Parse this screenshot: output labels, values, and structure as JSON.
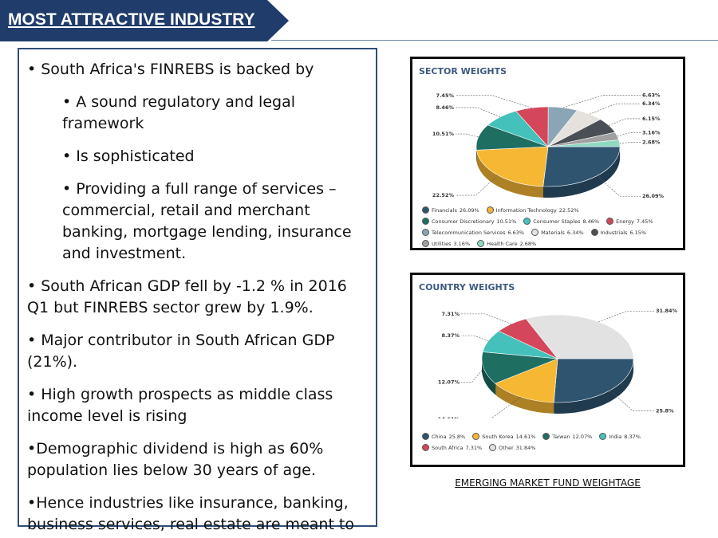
{
  "header": {
    "title": "MOST ATTRACTIVE INDUSTRY"
  },
  "bullets": [
    {
      "level": 1,
      "text": "• South Africa's FINREBS is backed by"
    },
    {
      "level": 2,
      "text": "• A sound regulatory and legal framework"
    },
    {
      "level": 2,
      "text": "• Is sophisticated"
    },
    {
      "level": 2,
      "text": "• Providing a full range of services – commercial, retail and merchant banking, mortgage lending, insurance and investment."
    },
    {
      "level": 1,
      "text": "• South African GDP fell by -1.2 % in 2016 Q1 but FINREBS sector grew by 1.9%."
    },
    {
      "level": 1,
      "text": "• Major contributor in South African GDP (21%)."
    },
    {
      "level": 1,
      "text": "• High growth prospects as middle class income level is rising"
    },
    {
      "level": 1,
      "text": "•Demographic dividend is high as 60% population lies below 30 years of age."
    },
    {
      "level": 1,
      "text": "•Hence industries like insurance, banking, business services, real estate are meant to prosper."
    }
  ],
  "chart_data": [
    {
      "type": "pie",
      "title": "SECTOR WEIGHTS",
      "categories": [
        "Financials",
        "Information Technology",
        "Consumer Discretionary",
        "Consumer Staples",
        "Energy",
        "Telecommunication Services",
        "Materials",
        "Industrials",
        "Utilities",
        "Health Care"
      ],
      "values": [
        26.09,
        22.52,
        10.51,
        8.46,
        7.45,
        6.63,
        6.34,
        6.15,
        3.16,
        2.68
      ],
      "value_labels": [
        "26.09%",
        "22.52%",
        "10.51%",
        "8.46%",
        "7.45%",
        "6.63%",
        "6.34%",
        "6.15%",
        "3.16%",
        "2.68%"
      ],
      "colors": [
        "#2e5470",
        "#f6b733",
        "#1e6e62",
        "#45c1bb",
        "#d4465a",
        "#8aa5b6",
        "#e5e2dd",
        "#4a4f55",
        "#a0a0a0",
        "#8fd9c0"
      ]
    },
    {
      "type": "pie",
      "title": "COUNTRY WEIGHTS",
      "categories": [
        "China",
        "South Korea",
        "Taiwan",
        "India",
        "South Africa",
        "Other"
      ],
      "values": [
        25.8,
        14.61,
        12.07,
        8.37,
        7.31,
        31.84
      ],
      "value_labels": [
        "25.8%",
        "14.61%",
        "12.07%",
        "8.37%",
        "7.31%",
        "31.84%"
      ],
      "colors": [
        "#2e5470",
        "#f6b733",
        "#1e6e62",
        "#45c1bb",
        "#d4465a",
        "#e2e2e2"
      ]
    }
  ],
  "caption": "EMERGING MARKET FUND WEIGHTAGE"
}
